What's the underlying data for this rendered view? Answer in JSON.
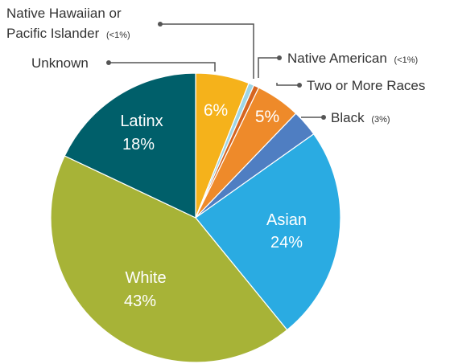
{
  "chart_data": {
    "type": "pie",
    "start_angle_deg": 0,
    "direction": "clockwise",
    "slices": [
      {
        "label": "Unknown",
        "value": 6,
        "color": "#F5B21B",
        "inside_label": "6%",
        "legend_label": "Unknown"
      },
      {
        "label": "Native Hawaiian or Pacific Islander",
        "value": 0.6,
        "color": "#9ED5E6",
        "legend_label_line1": "Native Hawaiian or",
        "legend_label_line2": "Pacific Islander",
        "legend_note": "(<1%)"
      },
      {
        "label": "Native American",
        "value": 0.6,
        "color": "#D6641F",
        "legend_label": "Native American",
        "legend_note": "(<1%)"
      },
      {
        "label": "Two or More Races",
        "value": 5,
        "color": "#EE8A2A",
        "inside_label": "5%",
        "legend_label": "Two or More Races"
      },
      {
        "label": "Black",
        "value": 3,
        "color": "#4F7EC2",
        "legend_label": "Black",
        "legend_note": "(3%)"
      },
      {
        "label": "Asian",
        "value": 24,
        "color": "#2AABE2",
        "inside_label": "Asian",
        "inside_value": "24%"
      },
      {
        "label": "White",
        "value": 43,
        "color": "#A7B337",
        "inside_label": "White",
        "inside_value": "43%"
      },
      {
        "label": "Latinx",
        "value": 18,
        "color": "#005F6A",
        "inside_label": "Latinx",
        "inside_value": "18%"
      }
    ]
  }
}
